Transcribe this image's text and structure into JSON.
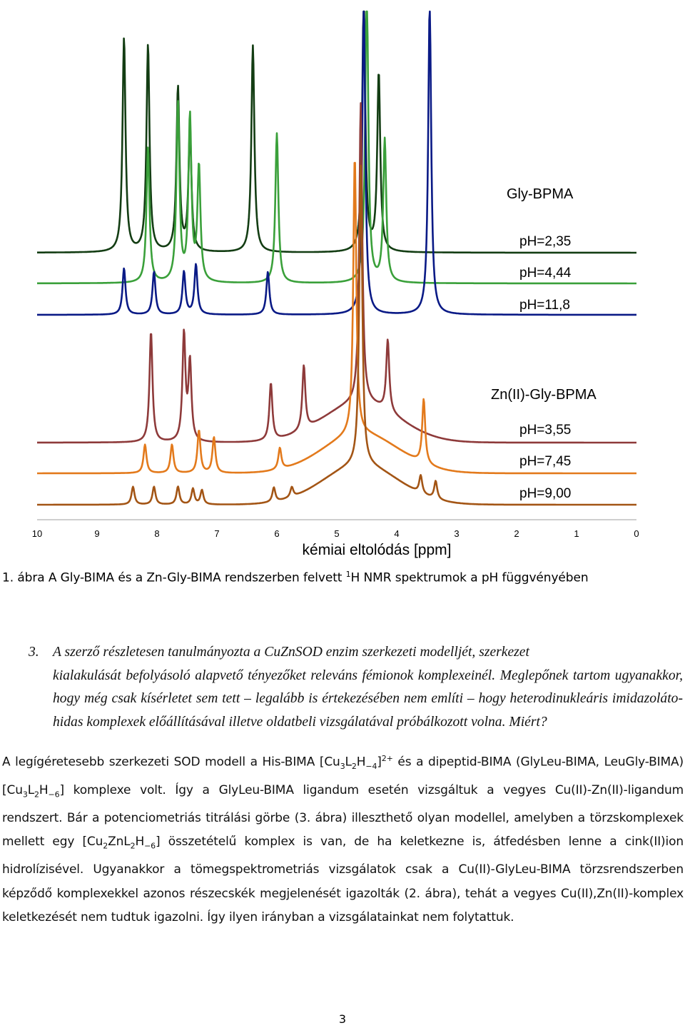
{
  "figure": {
    "group1": {
      "title": "Gly-BPMA",
      "items": [
        "pH=2,35",
        "pH=4,44",
        "pH=11,8"
      ]
    },
    "group2": {
      "title": "Zn(II)-Gly-BPMA",
      "items": [
        "pH=3,55",
        "pH=7,45",
        "pH=9,00"
      ]
    }
  },
  "chart_data": {
    "type": "line",
    "xlabel": "kémiai eltolódás [ppm]",
    "ylabel": "",
    "title": "",
    "xlim": [
      10,
      0
    ],
    "x_ticks": [
      "10",
      "9",
      "8",
      "7",
      "6",
      "5",
      "4",
      "3",
      "2",
      "1",
      "0"
    ],
    "series": [
      {
        "name": "pH=2,35",
        "color": "#133d13",
        "peaks_ppm": [
          8.55,
          8.15,
          7.65,
          7.45,
          6.4,
          4.55,
          4.3
        ]
      },
      {
        "name": "pH=4,44",
        "color": "#3aa03a",
        "peaks_ppm": [
          8.15,
          7.65,
          7.45,
          7.3,
          6.0,
          4.5,
          4.2
        ]
      },
      {
        "name": "pH=11,8",
        "color": "#0a1a86",
        "peaks_ppm": [
          8.55,
          8.05,
          7.55,
          7.35,
          6.15,
          4.55,
          3.45
        ]
      },
      {
        "name": "pH=3,55",
        "color": "#8e3a3a",
        "peaks_ppm": [
          8.1,
          7.55,
          7.45,
          6.1,
          5.55,
          4.6,
          4.15
        ]
      },
      {
        "name": "pH=7,45",
        "color": "#e37a1c",
        "peaks_ppm": [
          8.2,
          7.75,
          7.3,
          7.05,
          5.95,
          4.7,
          3.55
        ]
      },
      {
        "name": "pH=9,00",
        "color": "#a35515",
        "peaks_ppm": [
          8.4,
          8.05,
          7.65,
          7.4,
          7.25,
          6.05,
          5.75,
          4.6,
          3.6,
          3.35
        ]
      }
    ]
  },
  "caption": {
    "before_sup": "1. ábra A Gly-BIMA és a Zn-Gly-BIMA rendszerben felvett ",
    "sup": "1",
    "after_sup": "H NMR spektrumok a pH függvényében"
  },
  "question": {
    "number": "3.",
    "line1": "A szerző részletesen tanulmányozta a CuZnSOD enzim szerkezeti modelljét, szerkezet",
    "rest": "kialakulását befolyásoló alapvető tényezőket releváns fémionok komplexeinél. Meglepőnek tartom ugyanakkor, hogy még csak kísérletet sem tett – legalább is értekezésében nem említi – hogy heterodinukleáris imidazoláto-hidas komplexek előállításával illetve oldatbeli vizsgálatával próbálkozott volna. Miért?"
  },
  "answer": {
    "p1": "A legígéretesebb szerkezeti SOD modell a His-BIMA [Cu",
    "s1": "3",
    "p2": "L",
    "s2": "2",
    "p3": "H",
    "s3": "−4",
    "p4": "]",
    "sup1": "2+",
    "p5": " és a dipeptid-BIMA (GlyLeu-BIMA, LeuGly-BIMA) [Cu",
    "s4": "3",
    "p6": "L",
    "s5": "2",
    "p7": "H",
    "s6": "−6",
    "p8": "] komplexe volt. Így a GlyLeu-BIMA ligandum esetén vizsgáltuk a vegyes Cu(II)-Zn(II)-ligandum rendszert. Bár a potenciometriás titrálási görbe (3. ábra) illeszthető olyan modellel, amelyben a törzskomplexek mellett egy [Cu",
    "s7": "2",
    "p9": "ZnL",
    "s8": "2",
    "p10": "H",
    "s9": "−6",
    "p11": "] összetételű komplex is van, de ha keletkezne is, átfedésben lenne a cink(II)ion hidrolízisével. Ugyanakkor a tömegspektrometriás vizsgálatok csak a Cu(II)-GlyLeu-BIMA törzsrendszerben képződő komplexekkel azonos részecskék megjelenését igazolták (2. ábra), tehát a vegyes Cu(II),Zn(II)-komplex keletkezését nem tudtuk igazolni. Így ilyen irányban a vizsgálatainkat nem folytattuk."
  },
  "page_number": "3"
}
